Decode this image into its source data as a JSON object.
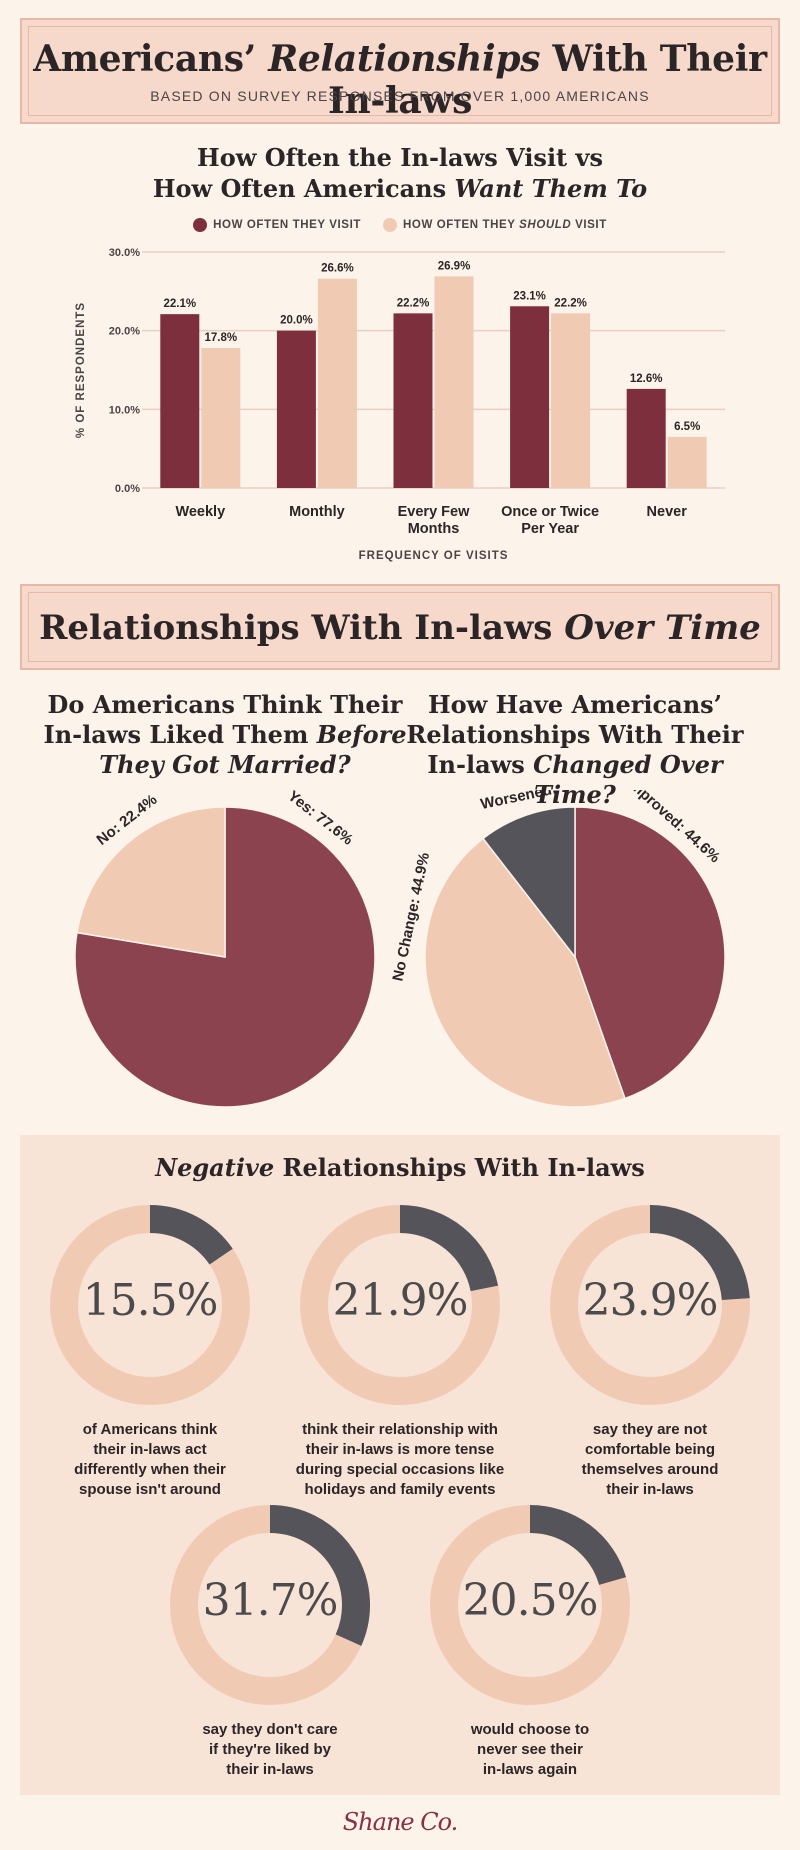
{
  "header": {
    "title_pre": "Americans’ ",
    "title_em": "Relationships",
    "title_post": " With Their In-laws",
    "subtitle": "BASED ON SURVEY RESPONSES FROM OVER 1,000 AMERICANS"
  },
  "bar_section": {
    "title_line1": "How Often the In-laws Visit vs",
    "title_line2_pre": "How Often Americans ",
    "title_line2_em": "Want Them To",
    "legend": [
      {
        "pre": "HOW OFTEN THEY VISIT",
        "em": "",
        "post": ""
      },
      {
        "pre": "HOW OFTEN THEY ",
        "em": "SHOULD",
        "post": " VISIT"
      }
    ]
  },
  "section2": {
    "title_pre": "Relationships With In-laws ",
    "title_em": "Over Time"
  },
  "pie1_title": {
    "line1": "Do Americans Think Their",
    "line2_pre": "In-laws Liked Them ",
    "line2_em": "Before",
    "line3_em": "They Got Married?"
  },
  "pie2_title": {
    "line1": "How Have Americans’",
    "line2": "Relationships With Their",
    "line3_pre": "In-laws ",
    "line3_em": "Changed Over Time?"
  },
  "negative": {
    "title_em": "Negative",
    "title_post": " Relationships With In-laws",
    "stats": [
      {
        "value": "15.5%",
        "fraction": 0.155,
        "caption": [
          "of Americans think",
          "their in-laws act",
          "differently when their",
          "spouse isn't around"
        ]
      },
      {
        "value": "21.9%",
        "fraction": 0.219,
        "caption": [
          "think their relationship with",
          "their in-laws is more tense",
          "during special occasions like",
          "holidays and family events"
        ]
      },
      {
        "value": "23.9%",
        "fraction": 0.239,
        "caption": [
          "say they are not",
          "comfortable being",
          "themselves around",
          "their in-laws"
        ]
      },
      {
        "value": "31.7%",
        "fraction": 0.317,
        "caption": [
          "say they don't care",
          "if they're liked by",
          "their in-laws"
        ]
      },
      {
        "value": "20.5%",
        "fraction": 0.205,
        "caption": [
          "would choose to",
          "never see their",
          "in-laws again"
        ]
      }
    ]
  },
  "logo": "Shane Co.",
  "colors": {
    "dark": "#7e2f3e",
    "pie_dark": "#8b4350",
    "light": "#f1cab4",
    "gray": "#55545a",
    "grid": "#e9cfc3"
  },
  "chart_data": [
    {
      "type": "bar",
      "categories": [
        "Weekly",
        "Monthly",
        "Every Few|Months",
        "Once or Twice|Per Year",
        "Never"
      ],
      "series": [
        {
          "name": "HOW OFTEN THEY VISIT",
          "values": [
            22.1,
            20.0,
            22.2,
            23.1,
            12.6
          ],
          "labels": [
            "22.1%",
            "20.0%",
            "22.2%",
            "23.1%",
            "12.6%"
          ]
        },
        {
          "name": "HOW OFTEN THEY SHOULD VISIT",
          "values": [
            17.8,
            26.6,
            26.9,
            22.2,
            6.5
          ],
          "labels": [
            "17.8%",
            "26.6%",
            "26.9%",
            "22.2%",
            "6.5%"
          ]
        }
      ],
      "yticks": [
        0,
        10,
        20,
        30
      ],
      "ytick_labels": [
        "0.0%",
        "10.0%",
        "20.0%",
        "30.0%"
      ],
      "ylim": [
        0,
        30
      ],
      "xlabel": "FREQUENCY OF VISITS",
      "ylabel": "% OF RESPONDENTS",
      "grid": true,
      "legend": "top"
    },
    {
      "type": "pie",
      "slices": [
        {
          "label": "Yes: 77.6%",
          "value": 77.6
        },
        {
          "label": "No: 22.4%",
          "value": 22.4
        }
      ]
    },
    {
      "type": "pie",
      "slices": [
        {
          "label": "Improved: 44.6%",
          "value": 44.6
        },
        {
          "label": "No Change: 44.9%",
          "value": 44.9
        },
        {
          "label": "Worsened: 10.5%",
          "value": 10.5
        }
      ]
    }
  ]
}
